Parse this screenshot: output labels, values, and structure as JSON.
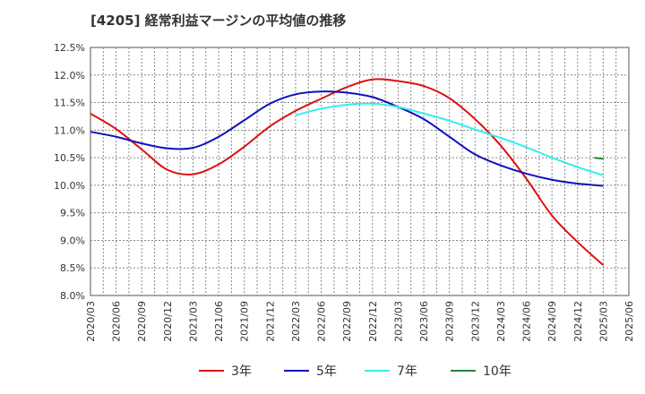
{
  "chart_data": {
    "type": "line",
    "title": "[4205]  経常利益マージンの平均値の推移",
    "x": [
      "2020/03",
      "2020/06",
      "2020/09",
      "2020/12",
      "2021/03",
      "2021/06",
      "2021/09",
      "2021/12",
      "2022/03",
      "2022/06",
      "2022/09",
      "2022/12",
      "2023/03",
      "2023/06",
      "2023/09",
      "2023/12",
      "2024/03",
      "2024/06",
      "2024/09",
      "2024/12",
      "2025/03",
      "2025/06"
    ],
    "y_ticks": [
      "12.5%",
      "12.0%",
      "11.5%",
      "11.0%",
      "10.5%",
      "10.0%",
      "9.5%",
      "9.0%",
      "8.5%",
      "8.0%"
    ],
    "ylim": [
      8.0,
      12.5
    ],
    "grid": true,
    "legend_position": "bottom",
    "series": [
      {
        "name": "3年",
        "color": "#dd1111",
        "values": [
          11.3,
          11.02,
          10.65,
          10.28,
          10.2,
          10.38,
          10.7,
          11.07,
          11.35,
          11.57,
          11.78,
          11.92,
          11.89,
          11.8,
          11.58,
          11.2,
          10.72,
          10.12,
          9.45,
          8.97,
          8.55,
          null
        ]
      },
      {
        "name": "5年",
        "color": "#1111bb",
        "values": [
          10.97,
          10.88,
          10.76,
          10.67,
          10.68,
          10.88,
          11.18,
          11.48,
          11.65,
          11.7,
          11.68,
          11.6,
          11.42,
          11.2,
          10.88,
          10.56,
          10.36,
          10.21,
          10.1,
          10.03,
          9.99,
          null
        ]
      },
      {
        "name": "7年",
        "color": "#33eeee",
        "values": [
          null,
          null,
          null,
          null,
          null,
          null,
          null,
          null,
          11.27,
          11.39,
          11.46,
          11.48,
          11.42,
          11.3,
          11.17,
          11.01,
          10.86,
          10.69,
          10.5,
          10.33,
          10.18,
          null
        ]
      },
      {
        "name": "10年",
        "color": "#228833",
        "values": [
          null,
          null,
          null,
          null,
          null,
          null,
          null,
          null,
          null,
          null,
          null,
          null,
          null,
          null,
          null,
          null,
          null,
          null,
          null,
          null,
          10.49,
          null
        ]
      }
    ]
  }
}
